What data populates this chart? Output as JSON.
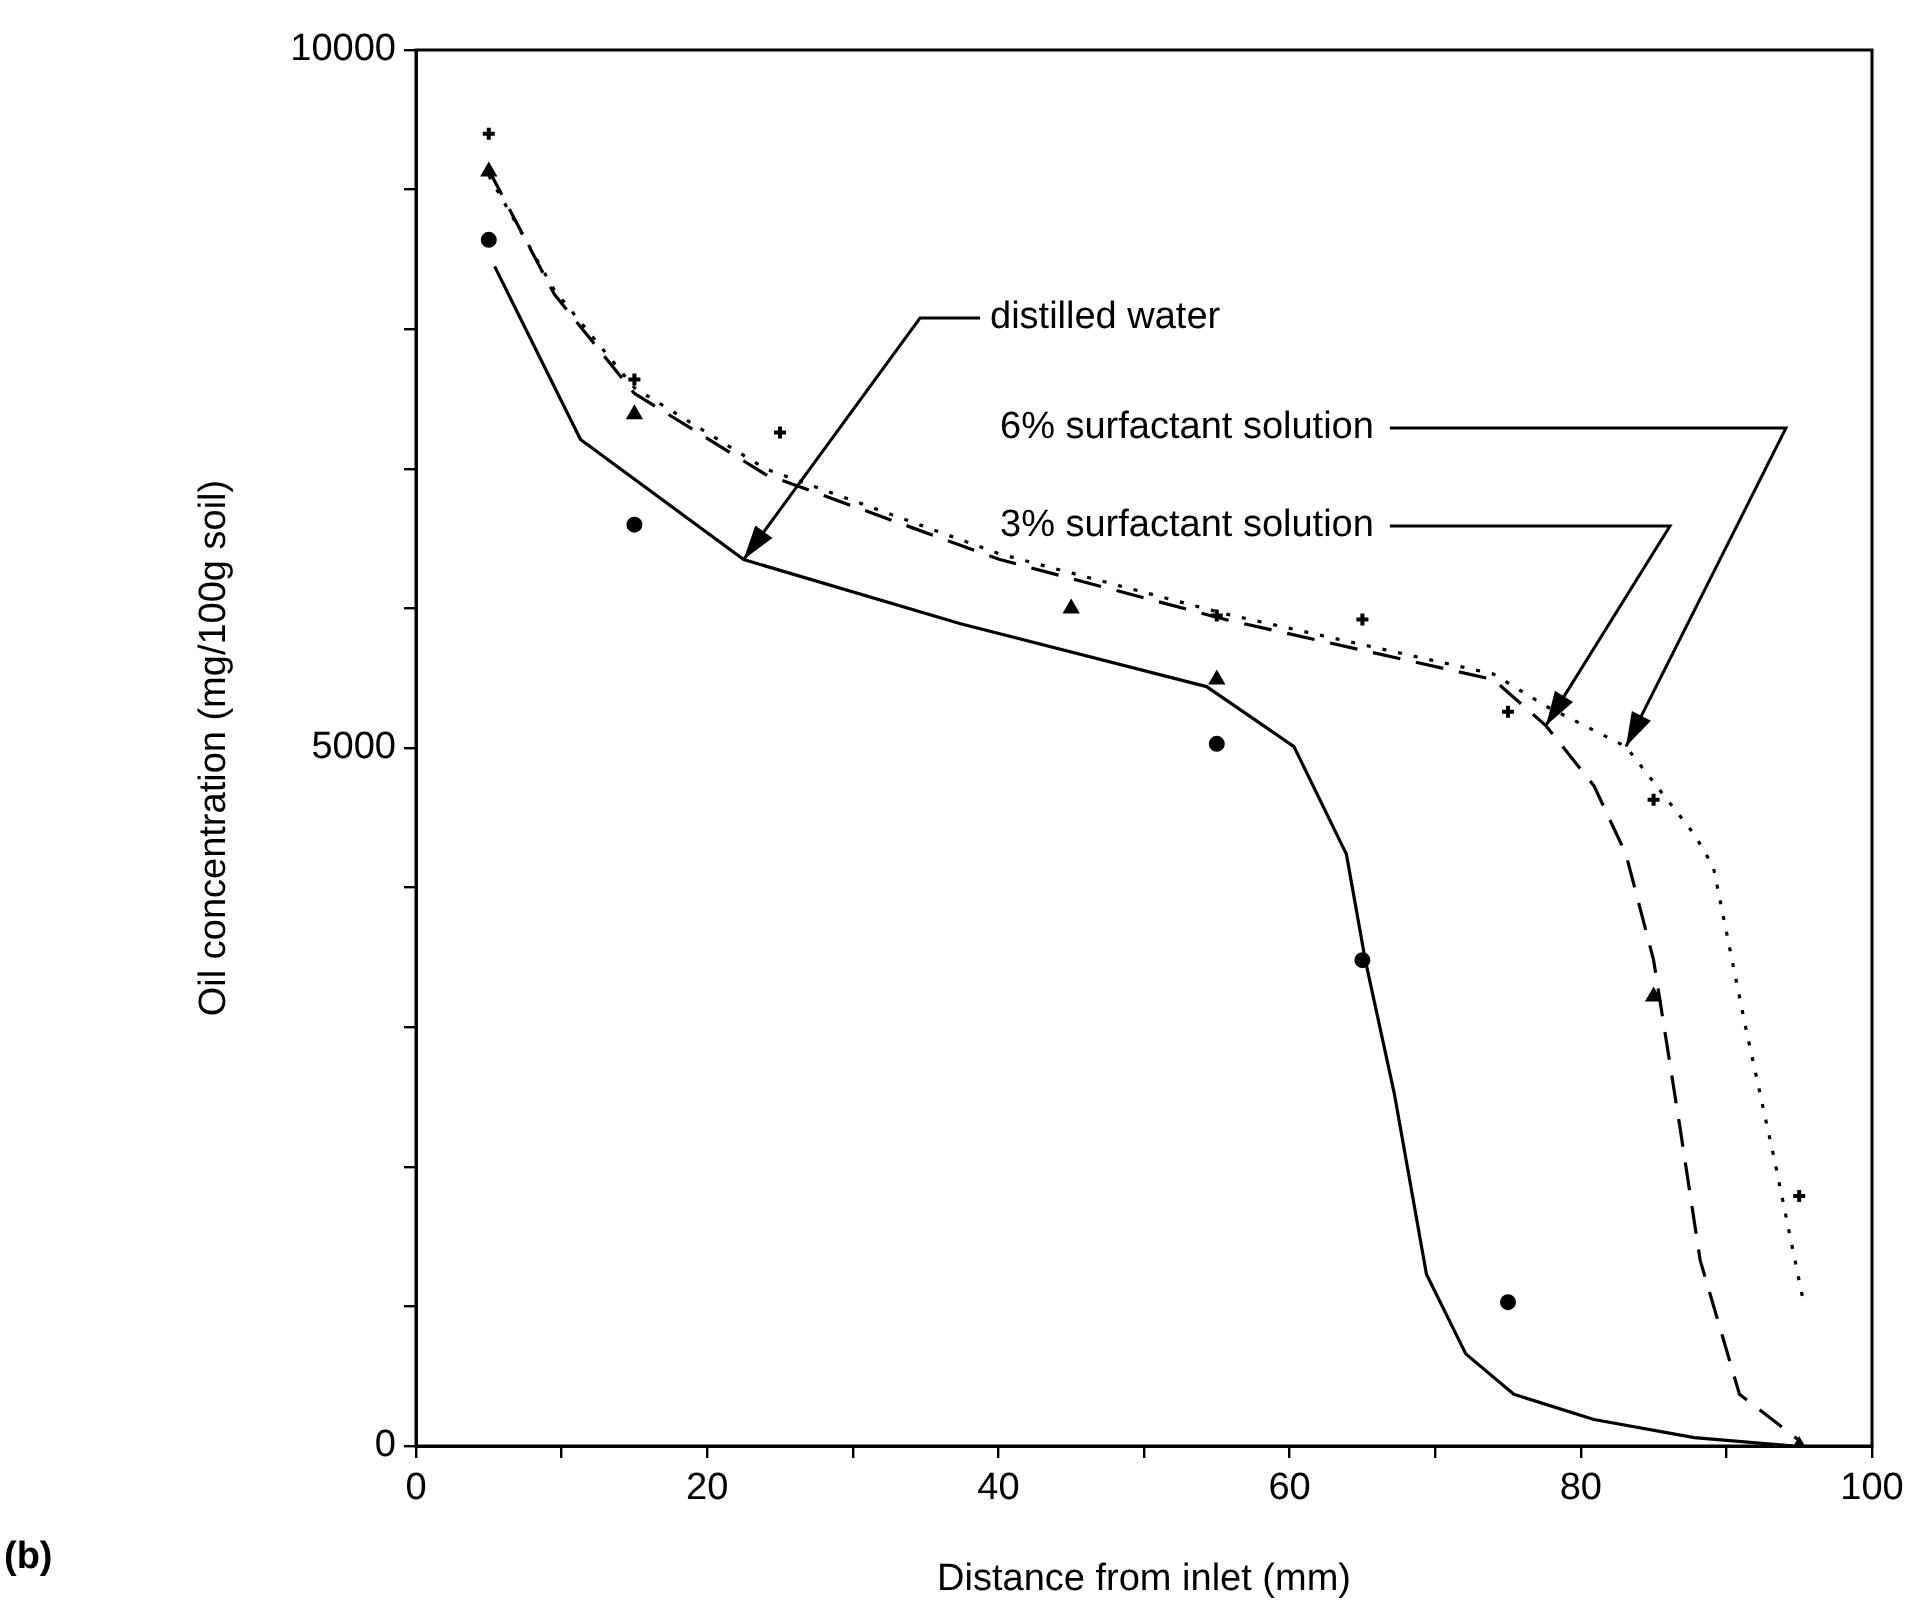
{
  "chart_data": {
    "type": "scatter",
    "xlabel": "Distance from inlet (mm)",
    "ylabel": "Oil concentration (mg/100g soil)",
    "xlim": [
      0,
      100
    ],
    "xticks": [
      0,
      {
        "value": 10,
        "label": null
      },
      20,
      {
        "value": 30,
        "label": null
      },
      40,
      {
        "value": 50,
        "label": null
      },
      60,
      {
        "value": 70,
        "label": null
      },
      80,
      {
        "value": 90,
        "label": null
      },
      100
    ],
    "ylim": [
      0,
      10000
    ],
    "yticks": [
      0,
      {
        "value": 1000,
        "label": null
      },
      {
        "value": 2000,
        "label": null
      },
      {
        "value": 3000,
        "label": null
      },
      {
        "value": 4000,
        "label": null
      },
      5000,
      {
        "value": 6000,
        "label": null
      },
      {
        "value": 7000,
        "label": null
      },
      {
        "value": 8000,
        "label": null
      },
      {
        "value": 9000,
        "label": null
      },
      10000
    ],
    "grid": false,
    "legend": false,
    "series": [
      {
        "marker": "circle",
        "color": "#000000",
        "x": [
          5,
          15,
          55,
          65,
          75
        ],
        "values": [
          8640,
          6600,
          5030,
          3480,
          1030
        ]
      },
      {
        "marker": "triangle",
        "color": "#000000",
        "x": [
          5,
          15,
          45,
          55,
          85,
          95
        ],
        "values": [
          9130,
          7390,
          6000,
          5490,
          3220,
          0
        ]
      },
      {
        "marker": "cross",
        "color": "#000000",
        "x": [
          5,
          15,
          25,
          55,
          65,
          75,
          85,
          95
        ],
        "values": [
          9400,
          7640,
          7260,
          5950,
          5920,
          5260,
          4630,
          1790
        ]
      },
      {
        "type": "line",
        "line_style": "solid",
        "marker": "none",
        "color": "#000000",
        "x": [
          5.4,
          11.3,
          22.5,
          37.4,
          54.3,
          60.3,
          63.9,
          65.2,
          67.2,
          69.4,
          72.1,
          75.4,
          80.9,
          87.8,
          94.6
        ],
        "values": [
          8450,
          7210,
          6350,
          5890,
          5440,
          5010,
          4240,
          3480,
          2520,
          1230,
          660,
          370,
          190,
          60,
          0
        ]
      },
      {
        "type": "line",
        "line_style": "dashed",
        "marker": "none",
        "color": "#000000",
        "x": [
          5,
          9.5,
          15,
          24,
          40.1,
          55.6,
          74,
          77.6,
          80.9,
          83.1,
          85,
          86.8,
          88.2,
          90.9,
          95
        ],
        "values": [
          9140,
          8250,
          7540,
          6960,
          6350,
          5920,
          5490,
          5160,
          4730,
          4240,
          3480,
          2290,
          1330,
          370,
          40
        ]
      },
      {
        "type": "line",
        "line_style": "dotted",
        "marker": "none",
        "color": "#000000",
        "x": [
          5,
          9.5,
          15,
          24,
          40.1,
          55.6,
          74,
          77.6,
          83.1,
          87.8,
          89.1,
          91.3,
          93.3,
          95.3
        ],
        "values": [
          9100,
          8280,
          7580,
          7000,
          6390,
          5960,
          5530,
          5300,
          5010,
          4380,
          4150,
          3010,
          2050,
          1030
        ]
      }
    ],
    "annotations": [
      {
        "text": "distilled water",
        "x": 22.5,
        "y": 6350
      },
      {
        "text": "6% surfactant solution",
        "x": 83.1,
        "y": 5010
      },
      {
        "text": "3% surfactant solution",
        "x": 77.6,
        "y": 5160
      },
      "(b)"
    ]
  }
}
